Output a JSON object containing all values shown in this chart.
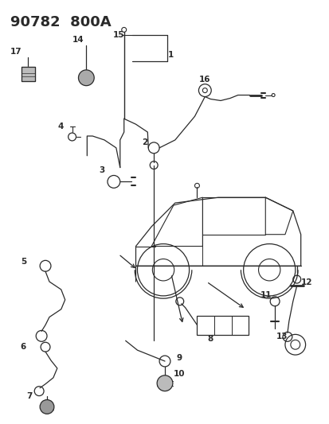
{
  "title": "90782  800A",
  "bg_color": "#ffffff",
  "line_color": "#2a2a2a",
  "title_fontsize": 13,
  "label_fontsize": 7.5,
  "fig_width": 4.14,
  "fig_height": 5.33,
  "dpi": 100
}
